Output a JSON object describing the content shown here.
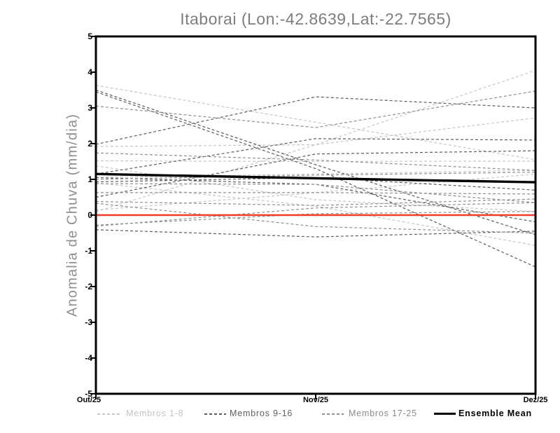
{
  "header": {
    "title": "Itaborai (Lon:-42.8639,Lat:-22.7565)"
  },
  "axes": {
    "ylabel": "Anomalia de Chuva (mm/dia)",
    "ytick_labels": [
      "5",
      "4",
      "3",
      "2",
      "1",
      "0",
      "-1",
      "-2",
      "-3",
      "-4",
      "-5"
    ],
    "xtick_labels": [
      "Out/25",
      "Nov/25",
      "Dez/25"
    ]
  },
  "legend": {
    "items": [
      {
        "label": "Membros 1-8",
        "color": "#c3c3c3",
        "line_color": "#c6c6c6",
        "style": "dashed"
      },
      {
        "label": "Membros 9-16",
        "color": "#5f5f5f",
        "line_color": "#5c5c5c",
        "style": "dashed"
      },
      {
        "label": "Membros 17-25",
        "color": "#8a8a8a",
        "line_color": "#8f8f8f",
        "style": "dashed"
      },
      {
        "label": "Ensemble Mean",
        "color": "#000000",
        "line_color": "#000000",
        "style": "solid"
      }
    ]
  },
  "colors": {
    "background": "#ffffff",
    "frame": "#000000",
    "title_text": "#7d7d7d",
    "axis_label_text": "#8f8f8f",
    "tick_label_text": "#000000",
    "zero_line": "#f03c2e",
    "members_1_8": "#c6c6c6",
    "members_9_16": "#5c5c5c",
    "members_17_25": "#8f8f8f",
    "ensemble_mean": "#000000"
  },
  "chart_data": {
    "type": "line",
    "title": "Itaborai (Lon:-42.8639,Lat:-22.7565)",
    "xlabel": "",
    "ylabel": "Anomalia de Chuva (mm/dia)",
    "x_categories": [
      "Out/25",
      "Nov/25",
      "Dez/25"
    ],
    "ylim": [
      -5,
      5
    ],
    "ytick_values": [
      5,
      4,
      3,
      2,
      1,
      0,
      -1,
      -2,
      -3,
      -4,
      -5
    ],
    "grid": false,
    "legend_position": "bottom",
    "zero_line": {
      "value": 0,
      "color": "#f03c2e",
      "style": "solid"
    },
    "series_groups": [
      {
        "name": "Membros 1-8",
        "color": "#c6c6c6",
        "style": "dashed",
        "members": [
          [
            3.63,
            2.6,
            1.55
          ],
          [
            1.92,
            1.97,
            2.72
          ],
          [
            1.52,
            1.5,
            1.51
          ],
          [
            1.38,
            0.43,
            0.1
          ],
          [
            0.1,
            1.97,
            4.05
          ],
          [
            1.05,
            1.15,
            1.25
          ],
          [
            0.9,
            0.25,
            -0.85
          ],
          [
            0.14,
            0.63,
            1.15
          ]
        ]
      },
      {
        "name": "Membros 9-16",
        "color": "#5c5c5c",
        "style": "dashed",
        "members": [
          [
            3.5,
            1.41,
            -0.55
          ],
          [
            3.45,
            1.3,
            -1.45
          ],
          [
            1.98,
            3.31,
            3.0
          ],
          [
            1.15,
            2.14,
            2.1
          ],
          [
            0.5,
            1.71,
            1.8
          ],
          [
            1.05,
            0.86,
            -0.19
          ],
          [
            0.93,
            1.05,
            0.7
          ],
          [
            -0.41,
            -0.61,
            -0.45
          ]
        ]
      },
      {
        "name": "Membros 17-25",
        "color": "#8f8f8f",
        "style": "dashed",
        "members": [
          [
            3.05,
            2.45,
            3.47
          ],
          [
            0.63,
            0.63,
            0.59
          ],
          [
            0.38,
            0.27,
            0.45
          ],
          [
            0.88,
            0.86,
            0.35
          ],
          [
            1.74,
            1.54,
            1.25
          ],
          [
            -0.28,
            0.04,
            0.1
          ],
          [
            0.33,
            -0.32,
            -0.5
          ],
          [
            1.0,
            1.12,
            1.2
          ],
          [
            -0.31,
            0.2,
            0.35
          ]
        ]
      }
    ],
    "ensemble_mean": {
      "name": "Ensemble Mean",
      "color": "#000000",
      "style": "solid",
      "values": [
        1.15,
        1.03,
        0.92
      ]
    }
  }
}
